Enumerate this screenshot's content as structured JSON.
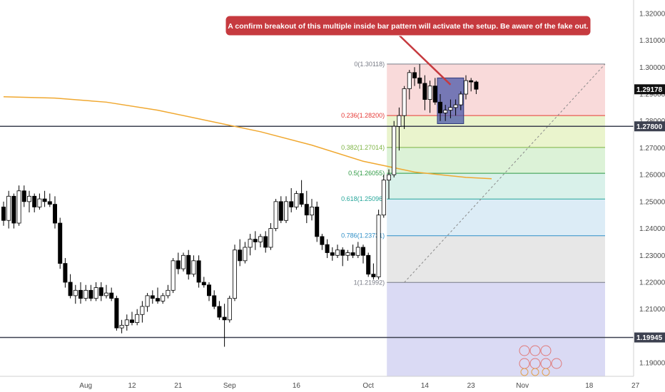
{
  "chart_data": {
    "type": "candlestick",
    "y_axis": {
      "min": 1.185,
      "max": 1.325,
      "ticks": [
        "1.19000",
        "1.20000",
        "1.21000",
        "1.22000",
        "1.23000",
        "1.24000",
        "1.25000",
        "1.26000",
        "1.27000",
        "1.28000",
        "1.29000",
        "1.30000",
        "1.31000",
        "1.32000"
      ],
      "ticks_values": [
        1.19,
        1.2,
        1.21,
        1.22,
        1.23,
        1.24,
        1.25,
        1.26,
        1.27,
        1.28,
        1.29,
        1.3,
        1.31,
        1.32
      ]
    },
    "x_axis": {
      "labels": [
        "Aug",
        "12",
        "21",
        "Sep",
        "16",
        "Oct",
        "14",
        "23",
        "Nov",
        "18",
        "27"
      ],
      "label_bar_index": [
        16,
        25,
        34,
        44,
        57,
        71,
        82,
        91,
        101,
        114,
        123
      ]
    },
    "candles": [
      [
        1.248,
        1.25,
        1.241,
        1.243
      ],
      [
        1.243,
        1.254,
        1.24,
        1.252
      ],
      [
        1.252,
        1.253,
        1.24,
        1.242
      ],
      [
        1.242,
        1.256,
        1.241,
        1.254
      ],
      [
        1.254,
        1.256,
        1.248,
        1.25
      ],
      [
        1.25,
        1.254,
        1.246,
        1.252
      ],
      [
        1.252,
        1.253,
        1.246,
        1.248
      ],
      [
        1.248,
        1.253,
        1.247,
        1.251
      ],
      [
        1.251,
        1.254,
        1.248,
        1.25
      ],
      [
        1.25,
        1.253,
        1.248,
        1.249
      ],
      [
        1.249,
        1.252,
        1.24,
        1.242
      ],
      [
        1.242,
        1.244,
        1.225,
        1.227
      ],
      [
        1.227,
        1.229,
        1.218,
        1.22
      ],
      [
        1.22,
        1.223,
        1.214,
        1.215
      ],
      [
        1.215,
        1.219,
        1.212,
        1.217
      ],
      [
        1.217,
        1.22,
        1.212,
        1.214
      ],
      [
        1.214,
        1.219,
        1.213,
        1.217
      ],
      [
        1.217,
        1.219,
        1.213,
        1.214
      ],
      [
        1.214,
        1.22,
        1.213,
        1.218
      ],
      [
        1.218,
        1.22,
        1.213,
        1.215
      ],
      [
        1.215,
        1.219,
        1.214,
        1.216
      ],
      [
        1.216,
        1.218,
        1.213,
        1.214
      ],
      [
        1.214,
        1.215,
        1.202,
        1.203
      ],
      [
        1.203,
        1.206,
        1.201,
        1.204
      ],
      [
        1.204,
        1.208,
        1.202,
        1.206
      ],
      [
        1.206,
        1.209,
        1.204,
        1.205
      ],
      [
        1.205,
        1.21,
        1.204,
        1.208
      ],
      [
        1.208,
        1.213,
        1.205,
        1.211
      ],
      [
        1.211,
        1.216,
        1.209,
        1.215
      ],
      [
        1.215,
        1.217,
        1.212,
        1.214
      ],
      [
        1.214,
        1.218,
        1.212,
        1.213
      ],
      [
        1.213,
        1.216,
        1.212,
        1.215
      ],
      [
        1.215,
        1.219,
        1.214,
        1.217
      ],
      [
        1.217,
        1.229,
        1.216,
        1.228
      ],
      [
        1.228,
        1.231,
        1.223,
        1.225
      ],
      [
        1.225,
        1.231,
        1.224,
        1.23
      ],
      [
        1.23,
        1.232,
        1.221,
        1.223
      ],
      [
        1.223,
        1.23,
        1.222,
        1.228
      ],
      [
        1.228,
        1.23,
        1.218,
        1.22
      ],
      [
        1.22,
        1.222,
        1.218,
        1.219
      ],
      [
        1.219,
        1.22,
        1.213,
        1.215
      ],
      [
        1.215,
        1.217,
        1.21,
        1.211
      ],
      [
        1.211,
        1.213,
        1.206,
        1.207
      ],
      [
        1.207,
        1.212,
        1.196,
        1.206
      ],
      [
        1.206,
        1.215,
        1.205,
        1.214
      ],
      [
        1.214,
        1.234,
        1.213,
        1.232
      ],
      [
        1.232,
        1.236,
        1.226,
        1.228
      ],
      [
        1.228,
        1.235,
        1.227,
        1.233
      ],
      [
        1.233,
        1.238,
        1.23,
        1.236
      ],
      [
        1.236,
        1.239,
        1.232,
        1.235
      ],
      [
        1.235,
        1.238,
        1.233,
        1.237
      ],
      [
        1.237,
        1.239,
        1.231,
        1.233
      ],
      [
        1.233,
        1.242,
        1.232,
        1.24
      ],
      [
        1.24,
        1.251,
        1.239,
        1.25
      ],
      [
        1.25,
        1.252,
        1.242,
        1.243
      ],
      [
        1.243,
        1.252,
        1.242,
        1.25
      ],
      [
        1.25,
        1.255,
        1.246,
        1.248
      ],
      [
        1.248,
        1.254,
        1.247,
        1.253
      ],
      [
        1.253,
        1.258,
        1.248,
        1.249
      ],
      [
        1.249,
        1.254,
        1.242,
        1.245
      ],
      [
        1.245,
        1.251,
        1.243,
        1.248
      ],
      [
        1.248,
        1.25,
        1.235,
        1.237
      ],
      [
        1.237,
        1.238,
        1.232,
        1.234
      ],
      [
        1.234,
        1.236,
        1.229,
        1.231
      ],
      [
        1.231,
        1.233,
        1.228,
        1.23
      ],
      [
        1.23,
        1.234,
        1.229,
        1.232
      ],
      [
        1.232,
        1.233,
        1.226,
        1.23
      ],
      [
        1.23,
        1.232,
        1.228,
        1.231
      ],
      [
        1.231,
        1.234,
        1.229,
        1.23
      ],
      [
        1.23,
        1.235,
        1.229,
        1.233
      ],
      [
        1.233,
        1.234,
        1.227,
        1.23
      ],
      [
        1.23,
        1.231,
        1.222,
        1.223
      ],
      [
        1.223,
        1.227,
        1.221,
        1.222
      ],
      [
        1.222,
        1.247,
        1.221,
        1.245
      ],
      [
        1.245,
        1.26,
        1.244,
        1.258
      ],
      [
        1.258,
        1.262,
        1.251,
        1.26
      ],
      [
        1.26,
        1.28,
        1.259,
        1.278
      ],
      [
        1.278,
        1.285,
        1.269,
        1.282
      ],
      [
        1.282,
        1.293,
        1.277,
        1.292
      ],
      [
        1.292,
        1.299,
        1.288,
        1.298
      ],
      [
        1.298,
        1.3,
        1.293,
        1.296
      ],
      [
        1.296,
        1.3012,
        1.292,
        1.294
      ],
      [
        1.294,
        1.297,
        1.284,
        1.288
      ],
      [
        1.288,
        1.295,
        1.283,
        1.293
      ],
      [
        1.293,
        1.296,
        1.286,
        1.287
      ],
      [
        1.287,
        1.29,
        1.28,
        1.283
      ],
      [
        1.283,
        1.286,
        1.28,
        1.284
      ],
      [
        1.284,
        1.288,
        1.281,
        1.285
      ],
      [
        1.285,
        1.288,
        1.282,
        1.286
      ],
      [
        1.286,
        1.291,
        1.284,
        1.29
      ],
      [
        1.29,
        1.297,
        1.288,
        1.295
      ],
      [
        1.295,
        1.296,
        1.291,
        1.2945
      ],
      [
        1.2945,
        1.295,
        1.29,
        1.2918
      ]
    ],
    "moving_average": [
      [
        0,
        1.289
      ],
      [
        10,
        1.2885
      ],
      [
        20,
        1.287
      ],
      [
        30,
        1.284
      ],
      [
        40,
        1.28
      ],
      [
        50,
        1.276
      ],
      [
        60,
        1.271
      ],
      [
        70,
        1.265
      ],
      [
        80,
        1.261
      ],
      [
        90,
        1.259
      ],
      [
        95,
        1.2585
      ]
    ],
    "fibonacci": {
      "high": 1.30118,
      "low": 1.21992,
      "levels": [
        {
          "label": "0(1.30118)",
          "value": 1.30118,
          "color": "#787b86",
          "band": "#f8d4d4"
        },
        {
          "label": "0.236(1.28200)",
          "value": 1.282,
          "color": "#e53935",
          "band": "#e6f2c4"
        },
        {
          "label": "0.382(1.27014)",
          "value": 1.27014,
          "color": "#7cb342",
          "band": "#d6f0d0"
        },
        {
          "label": "0.5(1.26055)",
          "value": 1.26055,
          "color": "#2e9a43",
          "band": "#d2eee6"
        },
        {
          "label": "0.618(1.25096)",
          "value": 1.25096,
          "color": "#26a69a",
          "band": "#d6e9f4"
        },
        {
          "label": "0.786(1.23731)",
          "value": 1.23731,
          "color": "#2f8fc7",
          "band": "#e3e3e3"
        },
        {
          "label": "1(1.21992)",
          "value": 1.21992,
          "color": "#787b86",
          "band": "#d3d4f2"
        }
      ],
      "extension_low": 1.185
    },
    "horizontal_lines": [
      {
        "value": 1.278,
        "label": "1.27800"
      },
      {
        "value": 1.19945,
        "label": "1.19945"
      }
    ],
    "current_price": {
      "value": 1.29178,
      "label": "1.29178"
    },
    "annotation": {
      "text": "A confirm breakout of this multiple inside bar pattern will activate the setup. Be aware of the fake out.",
      "color": "#c63a3f"
    },
    "inside_bar_box": {
      "from": 85,
      "to": 89,
      "top": 1.296,
      "bottom": 1.279,
      "color": "#4a57a8"
    },
    "colors": {
      "bull": "#ffffff",
      "bear": "#000000",
      "wick": "#000000",
      "ma": "#f0a830",
      "axis_text": "#4a4a4a"
    }
  }
}
